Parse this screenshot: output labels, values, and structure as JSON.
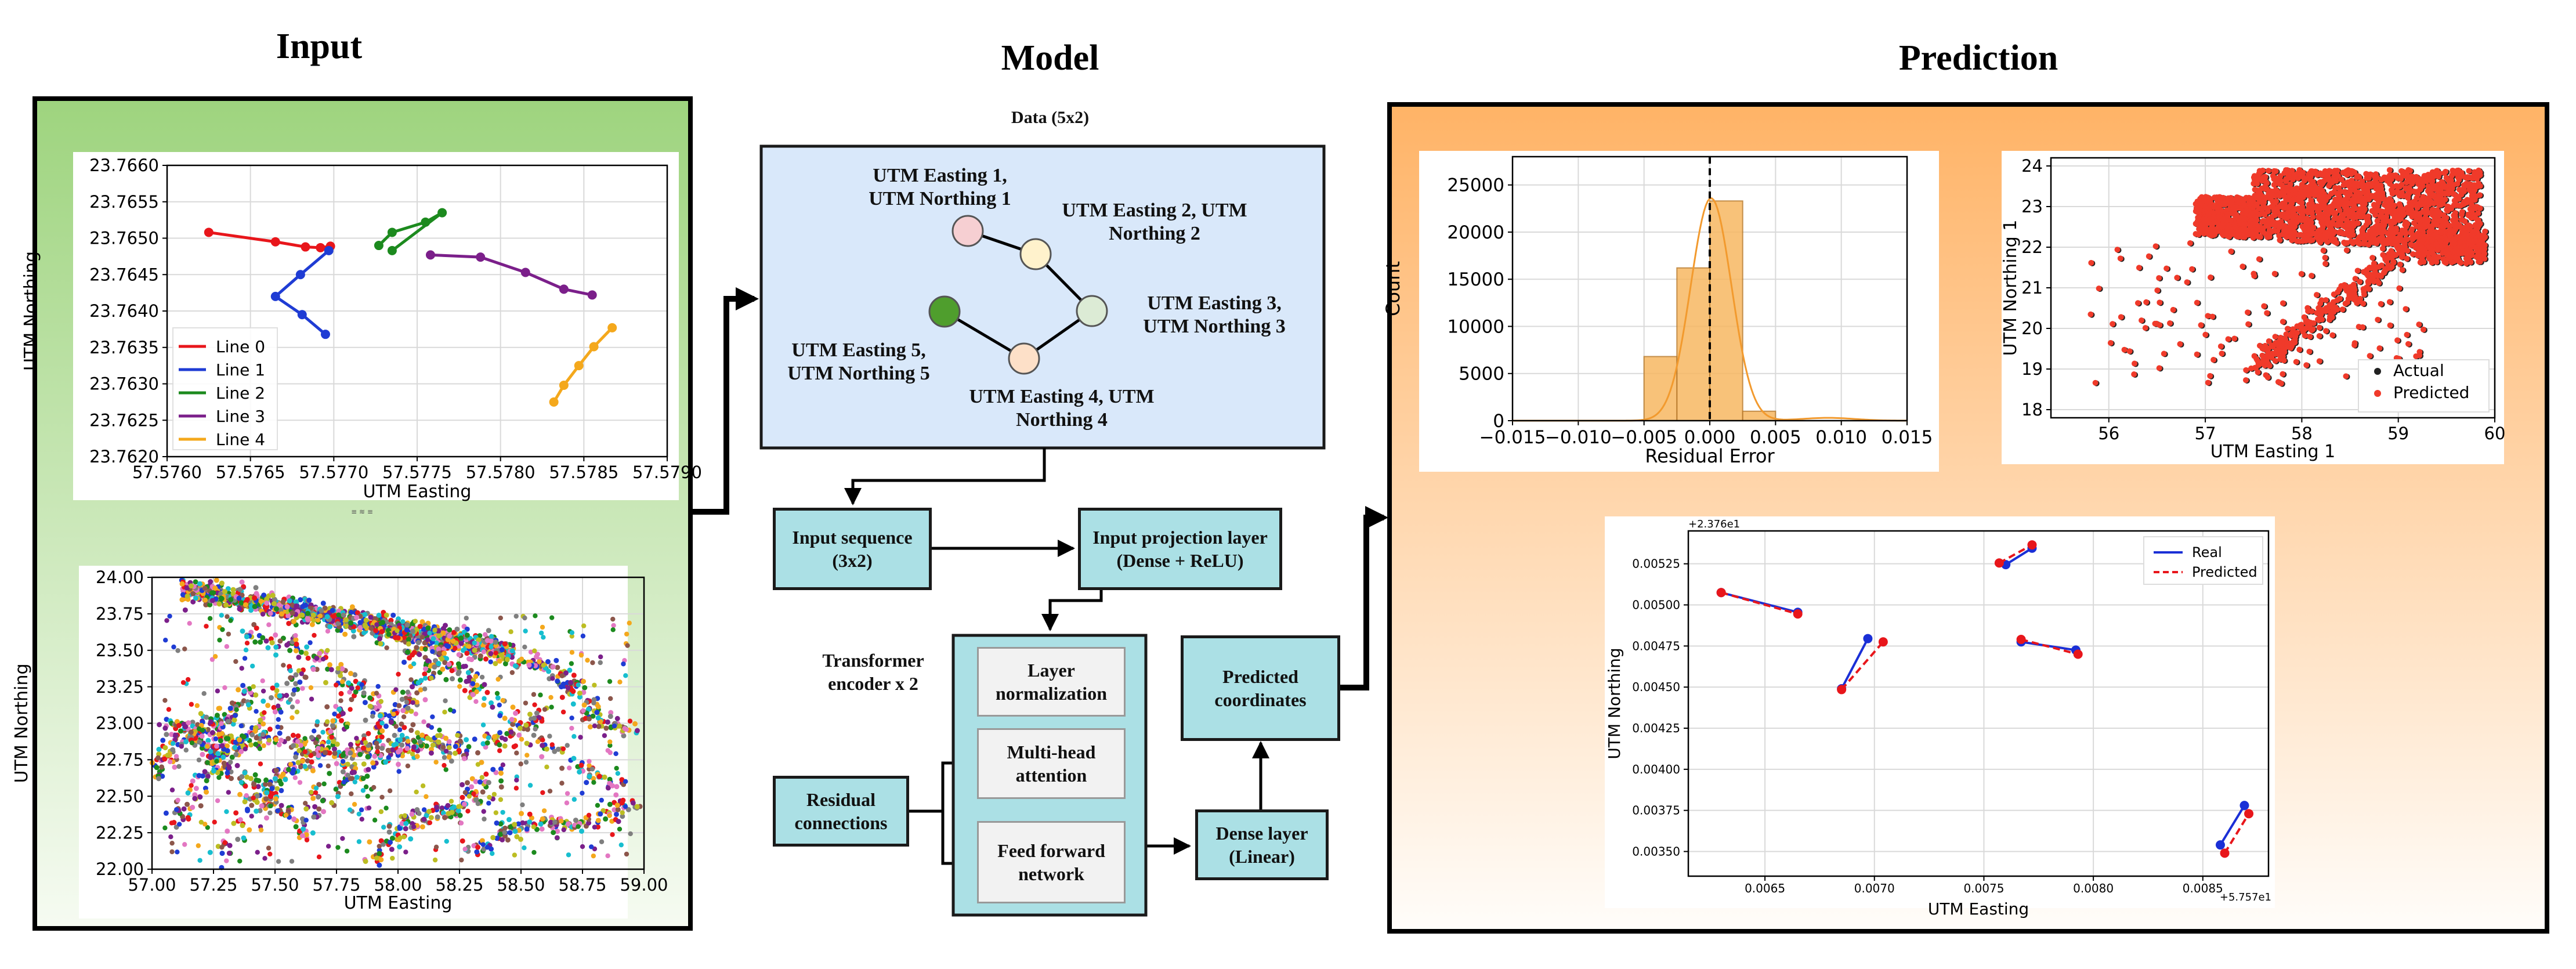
{
  "sections": {
    "input": "Input",
    "model": "Model",
    "prediction": "Prediction"
  },
  "colors": {
    "input_panel_top": "#9ed47e",
    "input_panel_bottom": "#f6fbf2",
    "prediction_panel_top": "#ffb366",
    "prediction_panel_bottom": "#fffdfa",
    "model_box": "#d9e8fa",
    "teal_box": "#abe0e5"
  },
  "model": {
    "data_title": "Data (5x2)",
    "nodes": [
      {
        "label": [
          "UTM Easting 1,",
          "UTM Northing 1"
        ],
        "fill": "#f6cfd2"
      },
      {
        "label": [
          "UTM Easting 2, UTM",
          "Northing 2"
        ],
        "fill": "#fff2cc"
      },
      {
        "label": [
          "UTM Easting 3,",
          "UTM Northing 3"
        ],
        "fill": "#dcebd5"
      },
      {
        "label": [
          "UTM Easting 4, UTM",
          "Northing 4"
        ],
        "fill": "#fde0c8"
      },
      {
        "label": [
          "UTM Easting 5,",
          "UTM Northing 5"
        ],
        "fill": "#4f9e2d"
      }
    ],
    "input_sequence": [
      "Input sequence",
      "(3x2)"
    ],
    "input_projection": [
      "Input projection layer",
      "(Dense + ReLU)"
    ],
    "transformer_label": [
      "Transformer",
      "encoder x 2"
    ],
    "layer_norm": [
      "Layer",
      "normalization"
    ],
    "multi_head": [
      "Multi-head",
      "attention"
    ],
    "feed_forward": [
      "Feed forward",
      "network"
    ],
    "residual": [
      "Residual",
      "connections"
    ],
    "predicted": [
      "Predicted",
      "coordinates"
    ],
    "dense_linear": [
      "Dense layer",
      "(Linear)"
    ]
  },
  "chart_data": [
    {
      "id": "input-lines",
      "type": "line",
      "xlabel": "UTM Easting",
      "ylabel": "UTM Northing",
      "xlim": [
        57.576,
        57.579
      ],
      "ylim": [
        23.762,
        23.766
      ],
      "xticks": [
        "57.5760",
        "57.5765",
        "57.5770",
        "57.5775",
        "57.5780",
        "57.5785",
        "57.5790"
      ],
      "yticks": [
        "23.7620",
        "23.7625",
        "23.7630",
        "23.7635",
        "23.7640",
        "23.7645",
        "23.7650",
        "23.7655",
        "23.7660"
      ],
      "legend": "left",
      "grid": true,
      "series": [
        {
          "name": "Line 0",
          "color": "#e8161b",
          "points": [
            [
              57.57625,
              23.76508
            ],
            [
              57.57665,
              23.76495
            ],
            [
              57.57683,
              23.76488
            ],
            [
              57.57692,
              23.76487
            ],
            [
              57.57698,
              23.76489
            ]
          ]
        },
        {
          "name": "Line 1",
          "color": "#1f3cd4",
          "points": [
            [
              57.57697,
              23.76483
            ],
            [
              57.5768,
              23.7645
            ],
            [
              57.57665,
              23.7642
            ],
            [
              57.57681,
              23.76395
            ],
            [
              57.57695,
              23.76368
            ]
          ]
        },
        {
          "name": "Line 2",
          "color": "#1c8a1e",
          "points": [
            [
              57.57727,
              23.7649
            ],
            [
              57.57735,
              23.76508
            ],
            [
              57.57755,
              23.76522
            ],
            [
              57.57765,
              23.76535
            ],
            [
              57.57735,
              23.76483
            ]
          ]
        },
        {
          "name": "Line 3",
          "color": "#7b1f8a",
          "points": [
            [
              57.57758,
              23.76477
            ],
            [
              57.57788,
              23.76474
            ],
            [
              57.57815,
              23.76453
            ],
            [
              57.57838,
              23.7643
            ],
            [
              57.57855,
              23.76422
            ]
          ]
        },
        {
          "name": "Line 4",
          "color": "#f4a81c",
          "points": [
            [
              57.57832,
              23.76275
            ],
            [
              57.57838,
              23.76298
            ],
            [
              57.57847,
              23.76325
            ],
            [
              57.57856,
              23.76351
            ],
            [
              57.57867,
              23.76377
            ]
          ]
        }
      ]
    },
    {
      "id": "input-scatter",
      "type": "scatter",
      "xlabel": "UTM Easting",
      "ylabel": "UTM Northing",
      "xlim": [
        57.0,
        59.0
      ],
      "ylim": [
        22.0,
        24.0
      ],
      "xticks": [
        "57.00",
        "57.25",
        "57.50",
        "57.75",
        "58.00",
        "58.25",
        "58.50",
        "58.75",
        "59.00"
      ],
      "yticks": [
        "22.00",
        "22.25",
        "22.50",
        "22.75",
        "23.00",
        "23.25",
        "23.50",
        "23.75",
        "24.00"
      ],
      "grid": true
    },
    {
      "id": "residual-histogram",
      "type": "bar",
      "xlabel": "Residual Error",
      "ylabel": "Count",
      "xlim": [
        -0.015,
        0.015
      ],
      "ylim": [
        0,
        28000
      ],
      "xticks": [
        "−0.015",
        "−0.010",
        "−0.005",
        "0.000",
        "0.005",
        "0.010",
        "0.015"
      ],
      "yticks": [
        "0",
        "5000",
        "10000",
        "15000",
        "20000",
        "25000"
      ],
      "grid": true,
      "bins": [
        {
          "x0": -0.005,
          "x1": -0.0025,
          "count": 6800
        },
        {
          "x0": -0.0025,
          "x1": 0.0,
          "count": 16200
        },
        {
          "x0": 0.0,
          "x1": 0.0025,
          "count": 23300
        },
        {
          "x0": 0.0025,
          "x1": 0.005,
          "count": 1000
        }
      ]
    },
    {
      "id": "actual-vs-predicted",
      "type": "scatter",
      "xlabel": "UTM Easting 1",
      "ylabel": "UTM Northing 1",
      "xlim": [
        55.4,
        60.0
      ],
      "ylim": [
        17.8,
        24.2
      ],
      "xticks": [
        "56",
        "57",
        "58",
        "59",
        "60"
      ],
      "yticks": [
        "18",
        "19",
        "20",
        "21",
        "22",
        "23",
        "24"
      ],
      "grid": true,
      "legend": "bottom-right",
      "series": [
        {
          "name": "Actual",
          "color": "#222222"
        },
        {
          "name": "Predicted",
          "color": "#f03a2a"
        }
      ]
    },
    {
      "id": "real-vs-predicted",
      "type": "line",
      "xlabel": "UTM Easting",
      "ylabel": "UTM Northing",
      "x_offset_label": "+5.757e1",
      "y_offset_label": "+2.376e1",
      "xlim": [
        0.00615,
        0.0088
      ],
      "ylim": [
        0.00335,
        0.00545
      ],
      "xticks": [
        "0.0065",
        "0.0070",
        "0.0075",
        "0.0080",
        "0.0085"
      ],
      "yticks": [
        "0.00350",
        "0.00375",
        "0.00400",
        "0.00425",
        "0.00450",
        "0.00475",
        "0.00500",
        "0.00525"
      ],
      "grid": true,
      "legend": "top-right",
      "series": [
        {
          "name": "Real",
          "color": "#1a2fd6",
          "style": "solid",
          "segments": [
            [
              [
                0.0063,
                0.005075
              ],
              [
                0.00665,
                0.004955
              ]
            ],
            [
              [
                0.00685,
                0.00449
              ],
              [
                0.00697,
                0.004795
              ]
            ],
            [
              [
                0.0076,
                0.005245
              ],
              [
                0.00772,
                0.005345
              ]
            ],
            [
              [
                0.00767,
                0.004775
              ],
              [
                0.00792,
                0.004725
              ]
            ],
            [
              [
                0.00858,
                0.00354
              ],
              [
                0.00869,
                0.00378
              ]
            ]
          ]
        },
        {
          "name": "Predicted",
          "color": "#e8161b",
          "style": "dashed",
          "segments": [
            [
              [
                0.0063,
                0.005075
              ],
              [
                0.00665,
                0.004945
              ]
            ],
            [
              [
                0.00685,
                0.004485
              ],
              [
                0.00704,
                0.004775
              ]
            ],
            [
              [
                0.00757,
                0.005255
              ],
              [
                0.00772,
                0.005365
              ]
            ],
            [
              [
                0.00767,
                0.00479
              ],
              [
                0.00793,
                0.0047
              ]
            ],
            [
              [
                0.0086,
                0.00349
              ],
              [
                0.00871,
                0.00373
              ]
            ]
          ]
        }
      ]
    }
  ]
}
